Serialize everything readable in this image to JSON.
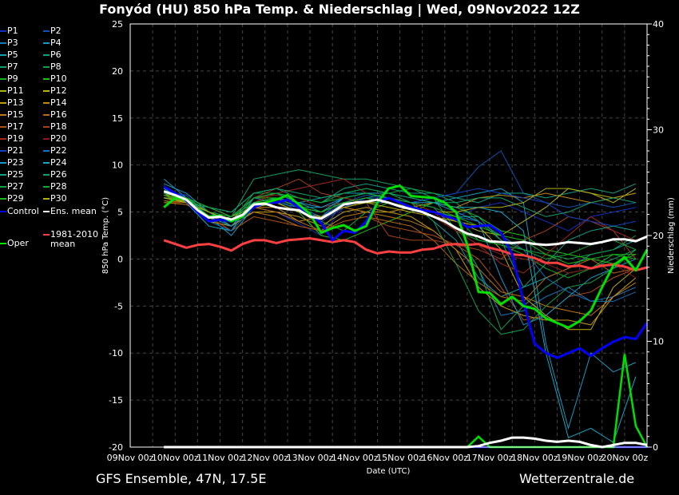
{
  "title": "Fonyód  (HU)  850 hPa Temp. & Niederschlag | Wed, 09Nov2022 12Z",
  "footer": {
    "left": "GFS Ensemble, 47N, 17.5E",
    "right": "Wetterzentrale.de"
  },
  "chart_data": {
    "type": "line",
    "title": "Fonyód  (HU)  850 hPa Temp. & Niederschlag | Wed, 09Nov2022 12Z",
    "xlabel": "Date (UTC)",
    "ylabel": "850 hPa Temp. (°C)",
    "y2label": "Niederschlag (mm)",
    "ylim": [
      -20,
      25
    ],
    "y2lim": [
      0,
      40
    ],
    "yticks": [
      "25",
      "20",
      "15",
      "10",
      "5",
      "0",
      "-5",
      "-10",
      "-15",
      "-20"
    ],
    "y2ticks": [
      "40",
      "30",
      "20",
      "10",
      "0"
    ],
    "xticks": [
      "09Nov 00z",
      "10Nov 00z",
      "11Nov 00z",
      "12Nov 00z",
      "13Nov 00z",
      "14Nov 00z",
      "15Nov 00z",
      "16Nov 00z",
      "17Nov 00z",
      "18Nov 00z",
      "19Nov 00z",
      "20Nov 00z"
    ],
    "x_range": [
      "09Nov 00z",
      "20Nov 12z"
    ],
    "grid": true,
    "legend_placement": "left",
    "main_series_time_step": "6h from 09Nov 18z",
    "member_time_step": "12h from 09Nov 18z",
    "series": [
      {
        "name": "Control",
        "color": "#0000ff",
        "values": [
          7.7,
          7.0,
          6.2,
          5.0,
          4.0,
          4.2,
          4.0,
          4.5,
          5.5,
          6.0,
          6.0,
          6.3,
          5.5,
          4.8,
          3.8,
          2.0,
          3.0,
          2.8,
          4.0,
          6.0,
          6.5,
          6.0,
          5.5,
          5.2,
          5.0,
          4.6,
          4.2,
          3.4,
          3.5,
          3.6,
          2.8,
          0.5,
          -4.5,
          -9.0,
          -10.0,
          -10.5,
          -10.0,
          -9.5,
          -10.3,
          -9.5,
          -8.8,
          -8.3,
          -8.5,
          -6.8
        ]
      },
      {
        "name": "Ens. mean",
        "color": "#ffffff",
        "values": [
          7.2,
          6.8,
          6.3,
          5.2,
          4.4,
          4.5,
          4.2,
          4.7,
          5.8,
          5.9,
          5.5,
          5.3,
          5.2,
          4.5,
          4.3,
          5.0,
          5.8,
          6.0,
          6.1,
          6.3,
          6.0,
          5.6,
          5.3,
          5.0,
          4.5,
          4.0,
          3.3,
          2.7,
          2.4,
          1.9,
          1.8,
          1.7,
          1.8,
          1.6,
          1.5,
          1.6,
          1.8,
          1.7,
          1.6,
          1.8,
          2.1,
          2.1,
          1.9,
          2.4
        ]
      },
      {
        "name": "1981-2010 mean",
        "color": "#ff4040",
        "values": [
          2.0,
          1.6,
          1.2,
          1.5,
          1.6,
          1.3,
          0.9,
          1.6,
          2.0,
          2.0,
          1.7,
          2.0,
          2.1,
          2.2,
          2.0,
          1.8,
          2.0,
          1.8,
          1.0,
          0.6,
          0.8,
          0.7,
          0.7,
          1.0,
          1.1,
          1.5,
          1.6,
          1.5,
          1.6,
          1.2,
          0.9,
          0.5,
          0.4,
          0.1,
          -0.4,
          -0.4,
          -0.8,
          -0.7,
          -1.0,
          -0.7,
          -0.6,
          -0.8,
          -1.2,
          -0.9
        ]
      },
      {
        "name": "Oper",
        "color": "#00e000",
        "values": [
          5.5,
          6.5,
          6.3,
          5.3,
          4.5,
          4.6,
          4.0,
          4.5,
          5.8,
          6.0,
          6.3,
          6.8,
          5.8,
          4.8,
          2.8,
          3.3,
          3.6,
          3.0,
          3.5,
          6.0,
          7.5,
          7.8,
          6.7,
          6.6,
          6.5,
          6.0,
          5.0,
          1.5,
          -3.5,
          -3.6,
          -4.8,
          -4.0,
          -5.0,
          -5.3,
          -6.3,
          -6.8,
          -7.3,
          -6.6,
          -5.5,
          -3.0,
          -0.7,
          0.2,
          -1.2,
          1.0
        ]
      }
    ],
    "precip": [
      {
        "name": "Ens. mean",
        "color": "#ffffff",
        "values": [
          0,
          0,
          0,
          0,
          0,
          0,
          0,
          0,
          0,
          0,
          0,
          0,
          0,
          0,
          0,
          0,
          0,
          0,
          0,
          0,
          0,
          0,
          0,
          0,
          0,
          0,
          0,
          0,
          0.1,
          0.4,
          0.6,
          0.9,
          0.9,
          0.8,
          0.6,
          0.5,
          0.6,
          0.5,
          0.2,
          0,
          0.2,
          0.4,
          0.4,
          0.2
        ]
      },
      {
        "name": "Oper",
        "color": "#00e000",
        "values": [
          0,
          0,
          0,
          0,
          0,
          0,
          0,
          0,
          0,
          0,
          0,
          0,
          0,
          0,
          0,
          0,
          0,
          0,
          0,
          0,
          0,
          0,
          0,
          0,
          0,
          0,
          0,
          0,
          1.0,
          0,
          0,
          0,
          0,
          0,
          0,
          0,
          0,
          0,
          0,
          0,
          0,
          8.8,
          2.0,
          0
        ]
      },
      {
        "name": "Control",
        "color": "#0000ff",
        "values": [
          0,
          0,
          0,
          0,
          0,
          0,
          0,
          0,
          0,
          0,
          0,
          0,
          0,
          0,
          0,
          0,
          0,
          0,
          0,
          0,
          0,
          0,
          0,
          0,
          0,
          0,
          0,
          0,
          0,
          0,
          0,
          0,
          0,
          0,
          0,
          0,
          0,
          0,
          0,
          0,
          0,
          0,
          0,
          0
        ]
      }
    ],
    "members": [
      {
        "name": "P1",
        "color": "#1030c0",
        "values": [
          7.5,
          6.5,
          4.0,
          3.5,
          5.5,
          5.0,
          3.8,
          2.5,
          5.5,
          6.5,
          6.0,
          5.5,
          5.0,
          4.5,
          5.5,
          6.0,
          5.0,
          4.0,
          3.0,
          4.5,
          5.0,
          5.5
        ]
      },
      {
        "name": "P2",
        "color": "#1050b0",
        "values": [
          7.0,
          6.8,
          4.5,
          4.0,
          6.0,
          5.5,
          4.0,
          3.0,
          6.0,
          6.8,
          6.5,
          6.0,
          6.5,
          7.0,
          9.8,
          11.5,
          7.0,
          6.0,
          5.5,
          6.0,
          5.5,
          6.0
        ]
      },
      {
        "name": "P3",
        "color": "#1878c0",
        "values": [
          7.8,
          6.0,
          3.5,
          3.0,
          6.5,
          6.0,
          5.0,
          4.5,
          6.5,
          7.0,
          6.5,
          6.0,
          5.5,
          3.0,
          -1.0,
          -6.0,
          -5.5,
          -4.0,
          -3.0,
          -4.5,
          -4.0,
          -3.0
        ]
      },
      {
        "name": "P4",
        "color": "#1898c0",
        "values": [
          8.5,
          6.5,
          4.5,
          2.5,
          5.5,
          6.5,
          5.5,
          5.5,
          6.0,
          6.5,
          6.0,
          5.5,
          6.0,
          6.5,
          7.0,
          7.5,
          6.0,
          -9.0,
          -18.0,
          -10.0,
          -12.0,
          -11.0
        ]
      },
      {
        "name": "P5",
        "color": "#10a0a8",
        "values": [
          7.5,
          6.0,
          3.5,
          3.0,
          6.5,
          7.0,
          6.0,
          6.5,
          7.0,
          7.0,
          6.5,
          6.0,
          4.0,
          2.0,
          -2.0,
          -4.0,
          -3.0,
          -2.0,
          -1.0,
          0.5,
          1.0,
          2.0
        ]
      },
      {
        "name": "P6",
        "color": "#10a080",
        "values": [
          7.0,
          6.5,
          5.5,
          5.0,
          7.0,
          7.5,
          6.5,
          6.0,
          7.5,
          8.0,
          7.5,
          7.0,
          7.0,
          6.5,
          6.0,
          7.0,
          7.0,
          6.5,
          7.0,
          7.5,
          7.0,
          8.0
        ]
      },
      {
        "name": "P7",
        "color": "#10a060",
        "values": [
          6.5,
          6.0,
          5.0,
          4.5,
          8.5,
          9.0,
          9.5,
          9.0,
          8.5,
          8.5,
          8.0,
          7.5,
          6.5,
          3.0,
          -1.0,
          -7.5,
          -5.0,
          -3.0,
          -1.5,
          -1.0,
          0.0,
          1.0
        ]
      },
      {
        "name": "P8",
        "color": "#10a040",
        "values": [
          6.0,
          6.5,
          5.0,
          4.0,
          7.0,
          7.0,
          6.5,
          5.5,
          6.0,
          6.5,
          7.0,
          7.5,
          7.0,
          6.0,
          4.0,
          2.0,
          1.0,
          0.5,
          0.0,
          0.5,
          1.0,
          2.5
        ]
      },
      {
        "name": "P9",
        "color": "#10b020",
        "values": [
          7.0,
          6.5,
          4.0,
          4.5,
          6.0,
          6.0,
          5.5,
          4.0,
          3.0,
          5.0,
          6.0,
          5.5,
          4.5,
          3.0,
          2.0,
          1.5,
          0.5,
          -1.0,
          -2.0,
          -1.0,
          0.5,
          0.5
        ]
      },
      {
        "name": "P10",
        "color": "#20c010",
        "values": [
          6.5,
          6.5,
          5.5,
          4.5,
          6.5,
          6.5,
          5.0,
          2.5,
          2.0,
          3.0,
          4.0,
          5.0,
          6.0,
          5.5,
          4.5,
          3.0,
          2.5,
          1.0,
          0.5,
          0.0,
          -0.5,
          0.5
        ]
      },
      {
        "name": "P11",
        "color": "#b0b010",
        "values": [
          7.0,
          6.0,
          5.0,
          4.0,
          6.0,
          6.5,
          5.5,
          5.0,
          6.0,
          6.5,
          6.0,
          5.5,
          5.0,
          4.0,
          3.0,
          2.5,
          4.0,
          5.5,
          7.5,
          7.0,
          6.5,
          7.0
        ]
      },
      {
        "name": "P12",
        "color": "#c0b010",
        "values": [
          6.8,
          6.0,
          5.5,
          4.5,
          5.5,
          6.0,
          5.0,
          4.0,
          5.5,
          6.0,
          5.5,
          5.0,
          4.5,
          4.0,
          3.5,
          1.0,
          -4.0,
          -6.0,
          -7.5,
          -7.5,
          -3.0,
          -1.0
        ]
      },
      {
        "name": "P13",
        "color": "#c09a10",
        "values": [
          6.5,
          6.0,
          4.0,
          3.5,
          5.0,
          5.0,
          4.5,
          3.5,
          5.0,
          5.5,
          5.0,
          4.5,
          3.0,
          1.0,
          -3.0,
          -5.0,
          -6.0,
          -6.5,
          -6.5,
          -7.0,
          -4.0,
          -2.0
        ]
      },
      {
        "name": "P14",
        "color": "#c08a10",
        "values": [
          6.5,
          6.2,
          5.0,
          4.5,
          5.5,
          5.5,
          4.0,
          4.5,
          5.5,
          5.0,
          5.0,
          5.5,
          6.0,
          5.5,
          6.5,
          6.8,
          6.5,
          7.0,
          6.5,
          6.0,
          6.5,
          7.0
        ]
      },
      {
        "name": "P15",
        "color": "#c07a10",
        "values": [
          6.0,
          5.8,
          4.5,
          4.0,
          5.0,
          4.5,
          3.5,
          3.0,
          4.5,
          5.0,
          4.5,
          4.0,
          3.0,
          1.0,
          -1.0,
          -3.5,
          -4.0,
          -5.0,
          -5.5,
          -6.0,
          -4.0,
          -2.5
        ]
      },
      {
        "name": "P16",
        "color": "#b86810",
        "values": [
          6.2,
          6.0,
          5.0,
          4.0,
          5.5,
          5.0,
          4.0,
          3.0,
          4.0,
          4.5,
          4.0,
          3.5,
          2.0,
          -0.5,
          -2.5,
          -4.0,
          -4.5,
          -2.0,
          -1.0,
          0.0,
          -1.5,
          -1.0
        ]
      },
      {
        "name": "P17",
        "color": "#b05010",
        "values": [
          6.0,
          6.0,
          4.5,
          3.0,
          4.5,
          4.0,
          3.5,
          3.0,
          4.0,
          4.5,
          3.5,
          3.0,
          2.5,
          1.5,
          0.0,
          -3.0,
          -6.5,
          -6.0,
          -4.0,
          -3.5,
          -2.0,
          -1.0
        ]
      },
      {
        "name": "P18",
        "color": "#a84018",
        "values": [
          6.5,
          6.5,
          5.5,
          4.5,
          6.5,
          7.5,
          8.5,
          7.0,
          6.5,
          6.0,
          2.5,
          2.0,
          2.0,
          1.5,
          1.0,
          0.0,
          2.0,
          3.0,
          4.5,
          4.0,
          3.0,
          0.0
        ]
      },
      {
        "name": "P19",
        "color": "#a02818",
        "values": [
          7.0,
          6.5,
          5.0,
          4.0,
          6.0,
          7.0,
          7.5,
          8.0,
          8.5,
          7.0,
          6.5,
          6.0,
          5.0,
          3.0,
          1.5,
          -0.5,
          -1.5,
          0.5,
          2.5,
          4.5,
          3.0,
          2.0
        ]
      },
      {
        "name": "P20",
        "color": "#901818",
        "values": [
          6.8,
          6.5,
          5.0,
          4.5,
          6.5,
          6.8,
          6.5,
          5.5,
          6.0,
          6.5,
          6.0,
          5.5,
          4.5,
          3.0,
          1.5,
          0.5,
          0.0,
          -0.5,
          -1.5,
          -1.0,
          -0.5,
          -2.0
        ]
      },
      {
        "name": "P21",
        "color": "#1040c0",
        "values": [
          7.2,
          6.8,
          4.5,
          3.5,
          6.0,
          6.5,
          5.0,
          4.0,
          5.5,
          6.5,
          6.5,
          6.0,
          6.5,
          7.0,
          7.5,
          7.0,
          6.5,
          6.0,
          4.5,
          4.0,
          3.5,
          4.0
        ]
      },
      {
        "name": "P22",
        "color": "#1070c0",
        "values": [
          7.0,
          6.5,
          4.0,
          3.0,
          5.5,
          6.0,
          5.5,
          4.5,
          6.0,
          6.5,
          6.0,
          5.5,
          5.0,
          4.5,
          4.0,
          2.5,
          1.0,
          -2.0,
          -3.5,
          -4.5,
          -4.5,
          -3.5
        ]
      },
      {
        "name": "P23",
        "color": "#1898c8",
        "values": [
          8.0,
          7.0,
          5.0,
          3.5,
          6.0,
          6.5,
          6.0,
          5.5,
          6.5,
          7.0,
          6.5,
          6.0,
          6.0,
          5.0,
          4.0,
          -2.0,
          -7.0,
          -6.0,
          -4.0,
          -2.0,
          -1.0,
          0.0
        ]
      },
      {
        "name": "P24",
        "color": "#18a8c0",
        "values": [
          7.5,
          6.5,
          4.5,
          3.5,
          6.0,
          6.5,
          5.5,
          5.0,
          6.5,
          7.0,
          7.0,
          6.5,
          6.0,
          5.5,
          5.5,
          5.0,
          3.0,
          -10.0,
          -19.0,
          -18.0,
          -19.5,
          -12.5
        ]
      },
      {
        "name": "P25",
        "color": "#10a088",
        "values": [
          7.0,
          6.5,
          5.0,
          4.0,
          6.5,
          7.0,
          6.0,
          5.0,
          6.0,
          6.0,
          6.0,
          5.5,
          5.0,
          4.5,
          4.5,
          2.0,
          -3.0,
          -0.5,
          2.0,
          3.0,
          3.5,
          3.0
        ]
      },
      {
        "name": "P26",
        "color": "#10a070",
        "values": [
          6.5,
          6.0,
          5.5,
          5.0,
          7.0,
          7.5,
          7.0,
          6.5,
          7.0,
          7.5,
          7.0,
          6.5,
          6.0,
          6.0,
          6.5,
          6.5,
          5.5,
          4.5,
          5.0,
          6.0,
          6.5,
          6.0
        ]
      },
      {
        "name": "P27",
        "color": "#10a048",
        "values": [
          7.0,
          6.5,
          5.0,
          4.5,
          6.5,
          7.0,
          6.5,
          6.0,
          7.0,
          7.5,
          7.0,
          6.0,
          4.0,
          -0.5,
          -5.5,
          -8.0,
          -7.5,
          -5.0,
          -3.0,
          -2.5,
          -1.0,
          1.0
        ]
      },
      {
        "name": "P28",
        "color": "#10a830",
        "values": [
          6.5,
          6.5,
          5.5,
          4.5,
          6.5,
          7.0,
          6.5,
          6.0,
          6.5,
          7.0,
          6.5,
          6.0,
          5.5,
          4.5,
          2.0,
          1.5,
          1.0,
          0.0,
          0.5,
          1.5,
          2.0,
          1.0
        ]
      },
      {
        "name": "P29",
        "color": "#18b818",
        "values": [
          6.8,
          6.5,
          5.0,
          4.0,
          6.0,
          6.5,
          5.5,
          5.0,
          6.0,
          6.5,
          6.0,
          5.5,
          5.0,
          4.5,
          3.5,
          2.5,
          2.0,
          0.5,
          -0.5,
          0.0,
          0.5,
          0.0
        ]
      },
      {
        "name": "P30",
        "color": "#b0b010",
        "values": [
          6.5,
          6.0,
          5.0,
          4.0,
          5.5,
          6.0,
          5.0,
          4.5,
          5.5,
          6.0,
          6.0,
          5.5,
          5.0,
          5.0,
          5.5,
          5.5,
          6.0,
          7.5,
          7.5,
          7.0,
          6.0,
          7.5
        ]
      }
    ],
    "legend": {
      "control": "Control",
      "ens_mean": "Ens. mean",
      "clim_1": "1981-2010",
      "clim_2": "mean",
      "oper": "Oper"
    }
  }
}
